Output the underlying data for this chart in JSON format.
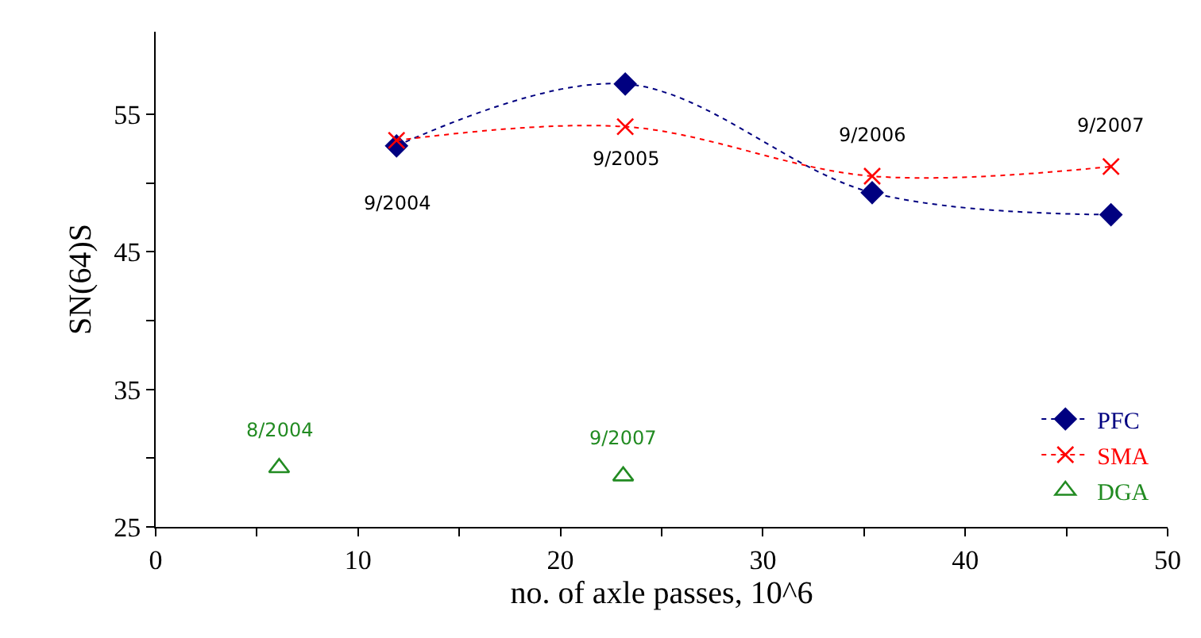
{
  "chart_data": {
    "type": "line",
    "xlabel": "no. of axle passes, 10^6",
    "ylabel": "SN(64)S",
    "xlim": [
      0,
      50
    ],
    "ylim": [
      25,
      61
    ],
    "xticks": [
      0,
      {
        "value": 5,
        "label": null
      },
      10,
      {
        "value": 15,
        "label": null
      },
      20,
      {
        "value": 25,
        "label": null
      },
      30,
      {
        "value": 35,
        "label": null
      },
      40,
      {
        "value": 45,
        "label": null
      },
      50
    ],
    "yticks": [
      25,
      {
        "value": 30,
        "label": null
      },
      35,
      {
        "value": 40,
        "label": null
      },
      45,
      {
        "value": 50,
        "label": null
      },
      55
    ],
    "legend": "bottom right",
    "line_style": "dotted",
    "series": [
      {
        "name": "PFC",
        "color": "#000080",
        "marker": "diamond",
        "x": [
          11.9,
          23.2,
          35.4,
          47.2
        ],
        "values": [
          52.7,
          57.2,
          49.3,
          47.7
        ]
      },
      {
        "name": "SMA",
        "color": "#ff0000",
        "marker": "cross",
        "x": [
          11.9,
          23.2,
          35.4,
          47.2
        ],
        "values": [
          53.1,
          54.1,
          50.5,
          51.2
        ]
      },
      {
        "name": "DGA",
        "type": "scatter",
        "color": "#228b22",
        "marker": "triangle",
        "x": [
          6.1,
          23.1
        ],
        "values": [
          29.3,
          28.7
        ]
      }
    ],
    "annotations": [
      {
        "text": "9/2004",
        "x": 11.9,
        "y": 52.7
      },
      {
        "text": "9/2005",
        "x": 23.2,
        "y": 54.1
      },
      {
        "text": "9/2006",
        "x": 35.4,
        "y": 50.5
      },
      {
        "text": "9/2007",
        "x": 47.2,
        "y": 51.2
      },
      {
        "text": "8/2004",
        "x": 6.1,
        "y": 29.3
      },
      {
        "text": "9/2007",
        "x": 23.1,
        "y": 28.7
      }
    ]
  }
}
